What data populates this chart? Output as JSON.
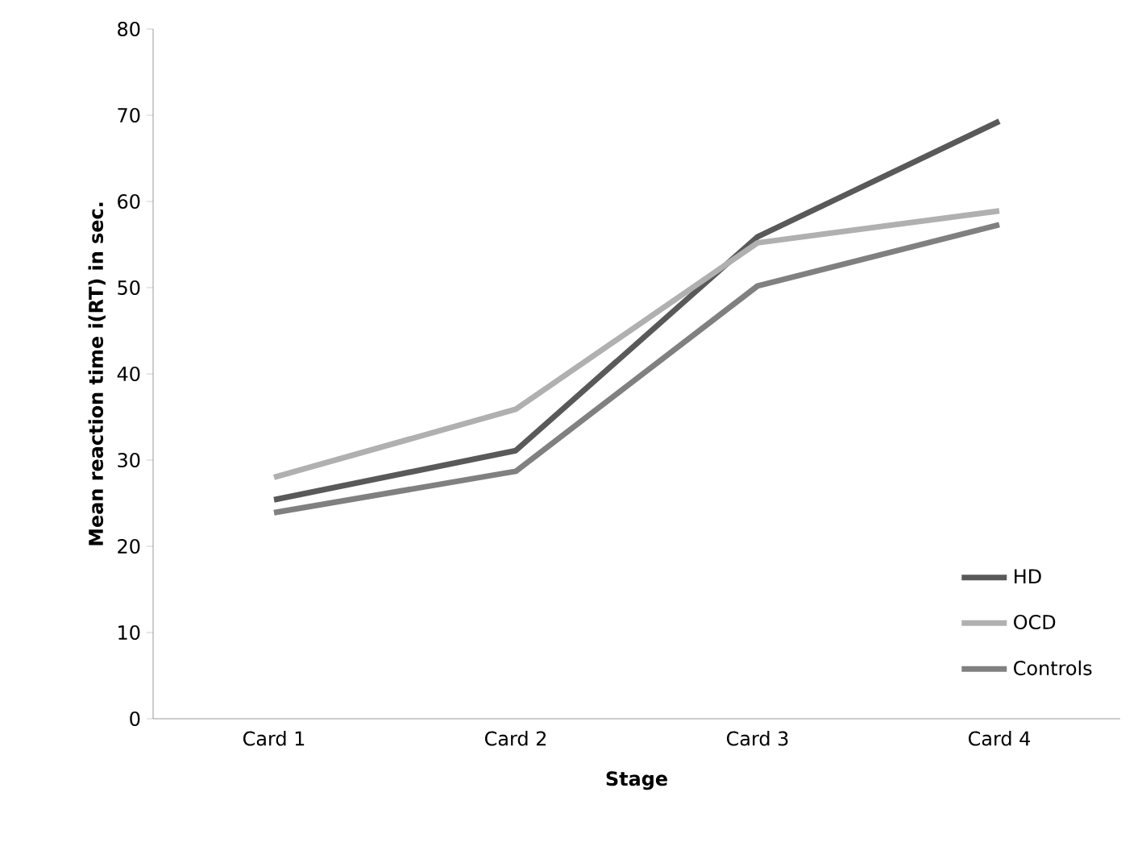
{
  "chart_data": {
    "type": "line",
    "xlabel": "Stage",
    "ylabel": "Mean reaction time i(RT) in sec.",
    "categories": [
      "Card 1",
      "Card 2",
      "Card 3",
      "Card 4"
    ],
    "series": [
      {
        "name": "HD",
        "color": "#595959",
        "values": [
          25.4,
          31.1,
          55.9,
          69.3
        ]
      },
      {
        "name": "OCD",
        "color": "#b0b0b0",
        "values": [
          28.0,
          35.9,
          55.2,
          58.9
        ]
      },
      {
        "name": "Controls",
        "color": "#808080",
        "values": [
          23.9,
          28.7,
          50.2,
          57.3
        ]
      }
    ],
    "ylim": [
      0,
      80
    ],
    "yticks": [
      0,
      10,
      20,
      30,
      40,
      50,
      60,
      70,
      80
    ],
    "legend": "bottom right",
    "marker": "none",
    "line_style": "solid"
  }
}
